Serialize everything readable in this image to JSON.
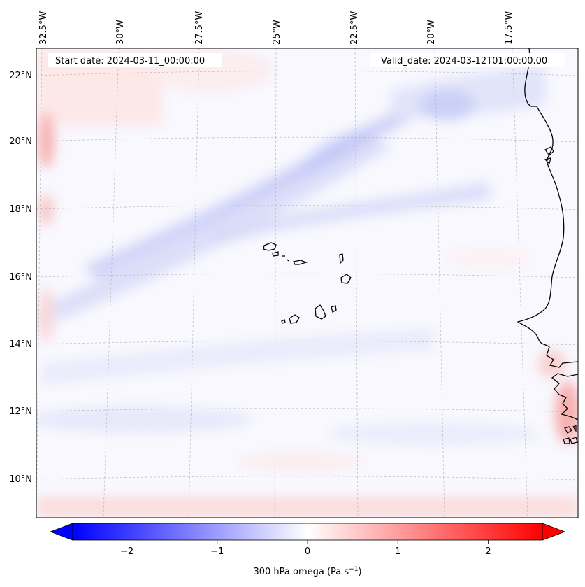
{
  "header": {
    "start_date": "Start date: 2024-03-11_00:00:00",
    "valid_date": "Valid_date: 2024-03-12T01:00:00.00"
  },
  "longitude_labels": [
    "32.5°W",
    "30°W",
    "27.5°W",
    "25°W",
    "22.5°W",
    "20°W",
    "17.5°W"
  ],
  "latitude_labels": [
    "22°N",
    "20°N",
    "18°N",
    "16°N",
    "14°N",
    "12°N",
    "10°N"
  ],
  "colorbar": {
    "ticks": [
      "−2",
      "−1",
      "0",
      "1",
      "2"
    ],
    "tick_values": [
      -2,
      -1,
      0,
      1,
      2
    ],
    "range": [
      -2.6,
      2.6
    ],
    "label_main": "300 hPa omega (Pa s",
    "label_exp": "−1",
    "label_close": ")",
    "colors": {
      "negative": "#0000ff",
      "zero": "#ffffff",
      "positive": "#ff0000"
    }
  },
  "colors": {
    "coastline": "#000000",
    "gridline": "#b0b0b0",
    "field_base": "#f8f8fe"
  }
}
